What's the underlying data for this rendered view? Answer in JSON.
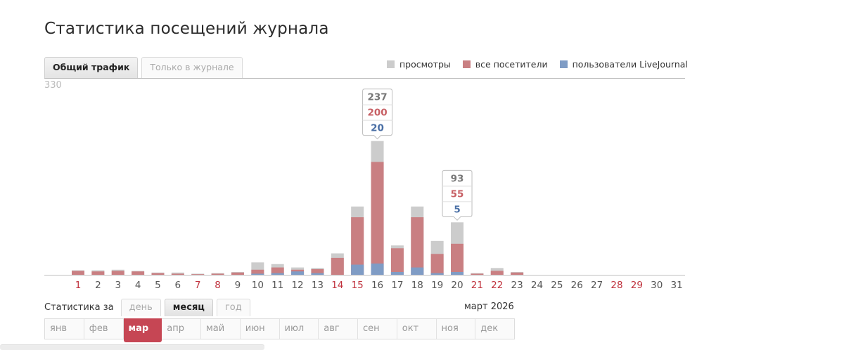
{
  "page": {
    "title": "Статистика посещений журнала"
  },
  "tabs": [
    {
      "label": "Общий трафик",
      "active": true
    },
    {
      "label": "Только в журнале",
      "active": false
    }
  ],
  "legend": [
    {
      "label": "просмотры",
      "color": "#cccccc"
    },
    {
      "label": "все посетители",
      "color": "#c97f82"
    },
    {
      "label": "пользователи LiveJournal",
      "color": "#7f9cc5"
    }
  ],
  "colors": {
    "views": "#cccccc",
    "visitors": "#c97f82",
    "users": "#7f9cc5",
    "weekend_text": "#c0323d",
    "weekday_text": "#555555",
    "tooltip_views_text": "#777777",
    "tooltip_visitors_text": "#c75f64",
    "tooltip_users_text": "#4a6fa5"
  },
  "chart_data": {
    "type": "bar",
    "stacked": "overlay",
    "ymax_label": "330",
    "ylim": [
      0,
      330
    ],
    "categories": [
      "1",
      "2",
      "3",
      "4",
      "5",
      "6",
      "7",
      "8",
      "9",
      "10",
      "11",
      "12",
      "13",
      "14",
      "15",
      "16",
      "17",
      "18",
      "19",
      "20",
      "21",
      "22",
      "23",
      "24",
      "25",
      "26",
      "27",
      "28",
      "29",
      "30",
      "31"
    ],
    "weekends": [
      "1",
      "7",
      "8",
      "14",
      "15",
      "21",
      "22",
      "28",
      "29"
    ],
    "series": [
      {
        "name": "просмотры",
        "values": [
          8,
          8,
          9,
          7,
          4,
          4,
          2,
          3,
          5,
          22,
          19,
          13,
          12,
          38,
          121,
          237,
          52,
          121,
          60,
          93,
          3,
          12,
          5,
          0,
          0,
          0,
          0,
          0,
          0,
          0,
          0
        ]
      },
      {
        "name": "все посетители",
        "values": [
          7,
          6,
          7,
          6,
          3,
          2,
          1,
          2,
          4,
          9,
          13,
          9,
          10,
          30,
          102,
          200,
          47,
          102,
          37,
          55,
          2,
          7,
          4,
          0,
          0,
          0,
          0,
          0,
          0,
          0,
          0
        ]
      },
      {
        "name": "пользователи LiveJournal",
        "values": [
          0,
          0,
          0,
          0,
          0,
          0,
          0,
          0,
          0,
          2,
          3,
          6,
          3,
          0,
          18,
          20,
          5,
          13,
          3,
          5,
          0,
          0,
          0,
          0,
          0,
          0,
          0,
          0,
          0,
          0,
          0
        ]
      }
    ],
    "tooltips": [
      {
        "day": "16",
        "views": "237",
        "visitors": "200",
        "users": "20"
      },
      {
        "day": "20",
        "views": "93",
        "visitors": "55",
        "users": "5"
      }
    ]
  },
  "period": {
    "label": "Статистика за",
    "options": [
      {
        "label": "день",
        "active": false
      },
      {
        "label": "месяц",
        "active": true
      },
      {
        "label": "год",
        "active": false
      }
    ],
    "current": "март 2026"
  },
  "months": [
    {
      "label": "янв",
      "active": false
    },
    {
      "label": "фев",
      "active": false
    },
    {
      "label": "мар",
      "active": true
    },
    {
      "label": "апр",
      "active": false
    },
    {
      "label": "май",
      "active": false
    },
    {
      "label": "июн",
      "active": false
    },
    {
      "label": "июл",
      "active": false
    },
    {
      "label": "авг",
      "active": false
    },
    {
      "label": "сен",
      "active": false
    },
    {
      "label": "окт",
      "active": false
    },
    {
      "label": "ноя",
      "active": false
    },
    {
      "label": "дек",
      "active": false
    }
  ]
}
